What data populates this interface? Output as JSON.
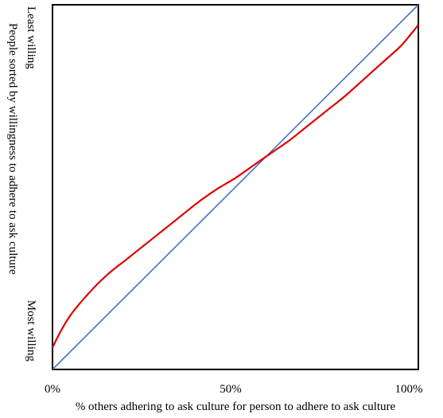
{
  "chart_data": {
    "type": "line",
    "title": "",
    "xlabel": "% others adhering to ask culture for person to adhere to ask culture",
    "ylabel": "People sorted by willingness to adhere to ask culture",
    "xlim": [
      0,
      100
    ],
    "ylim": [
      0,
      100
    ],
    "x_ticks": [
      {
        "value": 0,
        "label": "0%"
      },
      {
        "value": 50,
        "label": "50%"
      },
      {
        "value": 100,
        "label": "100%"
      }
    ],
    "y_ends": {
      "top": "Least willing",
      "bottom": "Most willing"
    },
    "grid": false,
    "legend": "none",
    "series": [
      {
        "color": "#4472C4",
        "x": [
          0,
          100
        ],
        "y": [
          0,
          100
        ]
      },
      {
        "color": "#E00000",
        "x": [
          0,
          2,
          5,
          10,
          15,
          20,
          25,
          30,
          35,
          40,
          45,
          50,
          55,
          60,
          65,
          70,
          75,
          80,
          85,
          90,
          95,
          98,
          100
        ],
        "y": [
          6,
          10,
          15,
          21,
          26,
          30,
          34,
          38,
          42,
          46,
          49.5,
          52.5,
          56,
          59.5,
          63,
          67,
          71,
          75,
          79.5,
          84,
          88.5,
          92,
          94.5
        ]
      }
    ]
  }
}
